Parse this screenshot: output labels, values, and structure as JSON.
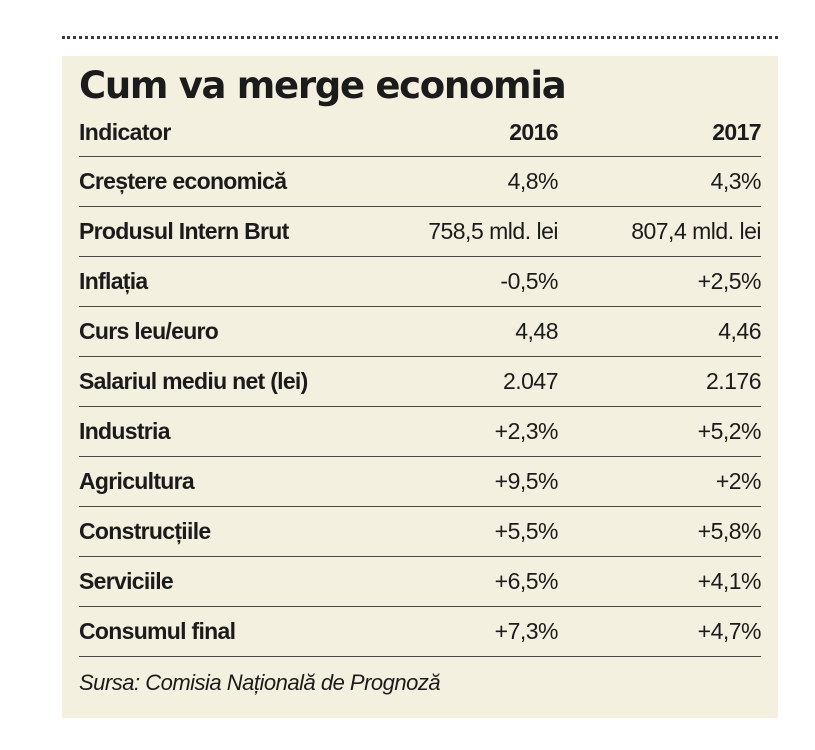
{
  "title": "Cum va merge economia",
  "columns": [
    "Indicator",
    "2016",
    "2017"
  ],
  "rows": [
    {
      "indicator": "Creștere economică",
      "y2016": "4,8%",
      "y2017": "4,3%"
    },
    {
      "indicator": "Produsul Intern Brut",
      "y2016": "758,5 mld. lei",
      "y2017": "807,4 mld. lei"
    },
    {
      "indicator": "Inflația",
      "y2016": "-0,5%",
      "y2017": "+2,5%"
    },
    {
      "indicator": "Curs leu/euro",
      "y2016": "4,48",
      "y2017": "4,46"
    },
    {
      "indicator": "Salariul mediu net (lei)",
      "y2016": "2.047",
      "y2017": "2.176"
    },
    {
      "indicator": "Industria",
      "y2016": "+2,3%",
      "y2017": "+5,2%"
    },
    {
      "indicator": "Agricultura",
      "y2016": "+9,5%",
      "y2017": "+2%"
    },
    {
      "indicator": "Construcțiile",
      "y2016": "+5,5%",
      "y2017": "+5,8%"
    },
    {
      "indicator": "Serviciile",
      "y2016": "+6,5%",
      "y2017": "+4,1%"
    },
    {
      "indicator": "Consumul final",
      "y2016": "+7,3%",
      "y2017": "+4,7%"
    }
  ],
  "source": "Sursa: Comisia Națională de Prognoză",
  "colors": {
    "panel_background": "#f4f0e0",
    "text": "#1b1b1b",
    "rule": "#4a4a4a"
  }
}
